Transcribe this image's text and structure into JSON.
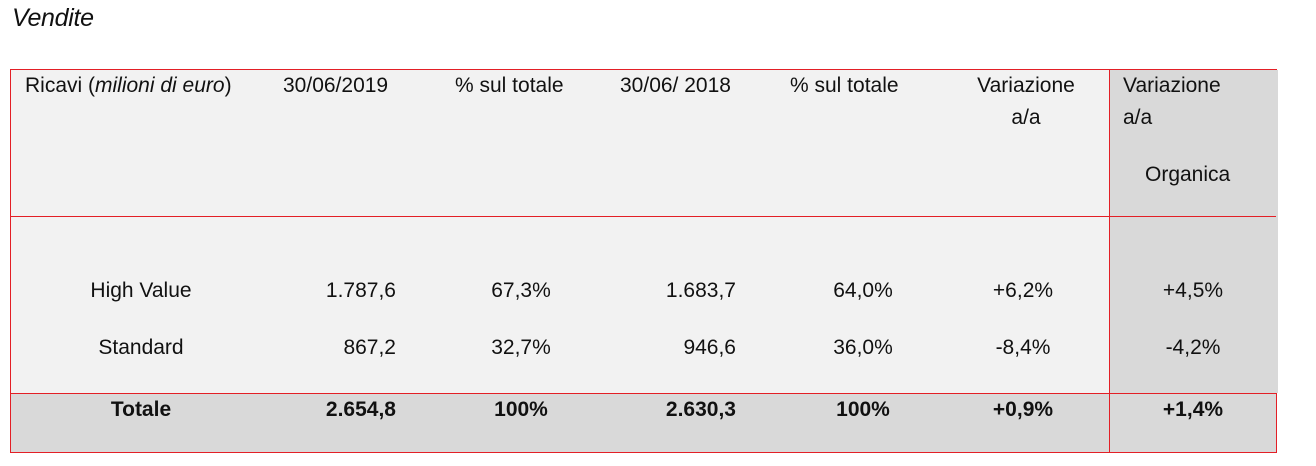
{
  "title": "Vendite",
  "table": {
    "header": {
      "col1_prefix": "Ricavi (",
      "col1_italic": "milioni di euro",
      "col1_suffix": ")",
      "col2": "30/06/2019",
      "col3": "% sul totale",
      "col4": "30/06/ 2018",
      "col5": "% sul totale",
      "col6_line1": "Variazione",
      "col6_line2": "a/a",
      "col7_line1": "Variazione",
      "col7_line2": "a/a",
      "col7_line3": "Organica"
    },
    "rows": [
      {
        "label": "High Value",
        "v2019": "1.787,6",
        "p2019": "67,3%",
        "v2018": "1.683,7",
        "p2018": "64,0%",
        "var": "+6,2%",
        "org": "+4,5%"
      },
      {
        "label": "Standard",
        "v2019": "867,2",
        "p2019": "32,7%",
        "v2018": "946,6",
        "p2018": "36,0%",
        "var": "-8,4%",
        "org": "-4,2%"
      }
    ],
    "total": {
      "label": "Totale",
      "v2019": "2.654,8",
      "p2019": "100%",
      "v2018": "2.630,3",
      "p2018": "100%",
      "var": "+0,9%",
      "org": "+1,4%"
    }
  },
  "colors": {
    "border": "#e31f26",
    "light_bg": "#f2f2f2",
    "dark_bg": "#d9d9d9"
  }
}
